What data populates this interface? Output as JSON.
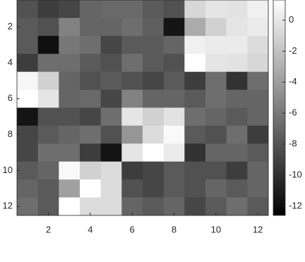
{
  "chart_data": {
    "type": "heatmap",
    "colormap": "gray",
    "x": [
      1,
      2,
      3,
      4,
      5,
      6,
      7,
      8,
      9,
      10,
      11,
      12
    ],
    "y": [
      1,
      2,
      3,
      4,
      5,
      6,
      7,
      8,
      9,
      10,
      11,
      12
    ],
    "z": [
      [
        -8.2,
        -9.3,
        -8.8,
        -7.1,
        -6.9,
        -6.9,
        -7.7,
        -8.2,
        -0.9,
        -0.1,
        -0.3,
        0.5
      ],
      [
        -7.7,
        -8.2,
        -5.5,
        -7.1,
        -7.1,
        -6.6,
        -7.4,
        -11.5,
        -3.3,
        -1.2,
        -0.1,
        0.2
      ],
      [
        -7.7,
        -11.8,
        -6.1,
        -6.6,
        -8.8,
        -7.7,
        -7.7,
        -7.1,
        0.5,
        0.2,
        0.2,
        -0.6
      ],
      [
        -9.3,
        -6.6,
        -6.6,
        -7.7,
        -8.2,
        -6.6,
        -7.7,
        -8.2,
        1.3,
        -0.1,
        -0.3,
        -0.9
      ],
      [
        0.8,
        -1.2,
        -7.1,
        -8.2,
        -7.7,
        -8.2,
        -8.8,
        -7.7,
        -9.3,
        -6.6,
        -9.9,
        -6.6
      ],
      [
        1.3,
        -0.1,
        -7.1,
        -6.9,
        -8.8,
        -5.5,
        -7.1,
        -7.1,
        -7.7,
        -6.6,
        -7.1,
        -7.1
      ],
      [
        -11.5,
        -8.2,
        -8.2,
        -8.8,
        -6.6,
        -0.1,
        -1.2,
        -0.3,
        -6.6,
        -7.1,
        -7.7,
        -7.1
      ],
      [
        -8.8,
        -7.7,
        -7.1,
        -6.6,
        -8.2,
        -4.4,
        -0.6,
        1.0,
        -7.7,
        -8.2,
        -6.6,
        -9.3
      ],
      [
        -8.8,
        -6.6,
        -6.6,
        -9.3,
        -11.5,
        -0.1,
        1.3,
        0.2,
        -9.9,
        -7.1,
        -7.1,
        -7.7
      ],
      [
        -7.7,
        -7.1,
        1.0,
        -1.2,
        -0.6,
        -9.3,
        -8.8,
        -7.7,
        -8.2,
        -8.2,
        -9.3,
        -7.1
      ],
      [
        -7.1,
        -7.7,
        -3.9,
        1.3,
        -0.6,
        -8.2,
        -8.8,
        -7.7,
        -8.2,
        -7.1,
        -7.7,
        -7.1
      ],
      [
        -6.6,
        -7.7,
        1.3,
        -0.6,
        -0.6,
        -7.1,
        -7.7,
        -7.1,
        -8.8,
        -7.7,
        -6.6,
        -7.7
      ]
    ],
    "xlim": [
      0.5,
      12.5
    ],
    "ylim": [
      0.5,
      12.5
    ],
    "y_reversed": true,
    "xticks": [
      2,
      4,
      6,
      8,
      10,
      12
    ],
    "yticks": [
      2,
      4,
      6,
      8,
      10,
      12
    ],
    "clim": [
      -12.6,
      1.3
    ],
    "cticks": [
      -12,
      -10,
      -8,
      -6,
      -4,
      -2,
      0
    ]
  }
}
